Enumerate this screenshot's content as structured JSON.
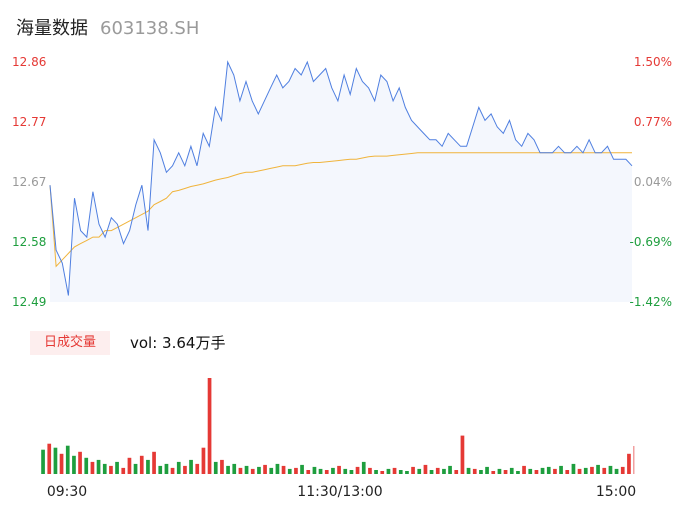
{
  "header": {
    "name": "海量数据",
    "code": "603138.SH"
  },
  "volume_label": {
    "tag": "日成交量",
    "prefix": "vol: ",
    "value": "3.64万手"
  },
  "colors": {
    "up": "#e53935",
    "down": "#1e9e3e",
    "neutral": "#999999",
    "price_line": "#4f7fe0",
    "avg_line": "#f0b43c",
    "fill": "#f4f7fd"
  },
  "chart_data": {
    "type": "line",
    "y_ticks": [
      "12.86",
      "12.77",
      "12.67",
      "12.58",
      "12.49"
    ],
    "pct_ticks": [
      "1.50%",
      "0.77%",
      "0.04%",
      "-0.69%",
      "-1.42%"
    ],
    "x_ticks": [
      "09:30",
      "11:30/13:00",
      "15:00"
    ],
    "ylim": [
      12.49,
      12.86
    ],
    "prev_close": 12.67,
    "series": [
      {
        "values": [
          12.67,
          12.57,
          12.55,
          12.5,
          12.65,
          12.6,
          12.59,
          12.66,
          12.61,
          12.59,
          12.62,
          12.61,
          12.58,
          12.6,
          12.64,
          12.67,
          12.6,
          12.74,
          12.72,
          12.69,
          12.7,
          12.72,
          12.7,
          12.73,
          12.7,
          12.75,
          12.73,
          12.79,
          12.77,
          12.86,
          12.84,
          12.8,
          12.83,
          12.8,
          12.78,
          12.8,
          12.82,
          12.84,
          12.82,
          12.83,
          12.85,
          12.84,
          12.86,
          12.83,
          12.84,
          12.85,
          12.82,
          12.8,
          12.84,
          12.81,
          12.85,
          12.83,
          12.82,
          12.8,
          12.84,
          12.83,
          12.8,
          12.82,
          12.79,
          12.77,
          12.76,
          12.75,
          12.74,
          12.74,
          12.73,
          12.75,
          12.74,
          12.73,
          12.73,
          12.76,
          12.79,
          12.77,
          12.78,
          12.76,
          12.75,
          12.77,
          12.74,
          12.73,
          12.75,
          12.74,
          12.72,
          12.72,
          12.72,
          12.73,
          12.72,
          12.72,
          12.73,
          12.72,
          12.74,
          12.72,
          12.72,
          12.73,
          12.71,
          12.71,
          12.71,
          12.7
        ]
      },
      {
        "values": [
          12.67,
          12.545,
          12.555,
          12.565,
          12.575,
          12.58,
          12.585,
          12.59,
          12.59,
          12.6,
          12.6,
          12.605,
          12.61,
          12.615,
          12.62,
          12.625,
          12.63,
          12.64,
          12.645,
          12.65,
          12.66,
          12.662,
          12.665,
          12.668,
          12.67,
          12.672,
          12.675,
          12.678,
          12.68,
          12.682,
          12.685,
          12.688,
          12.69,
          12.69,
          12.692,
          12.694,
          12.696,
          12.698,
          12.7,
          12.7,
          12.7,
          12.702,
          12.704,
          12.705,
          12.705,
          12.706,
          12.707,
          12.708,
          12.709,
          12.71,
          12.71,
          12.712,
          12.714,
          12.715,
          12.715,
          12.715,
          12.716,
          12.717,
          12.718,
          12.719,
          12.72,
          12.72,
          12.72,
          12.72,
          12.72,
          12.72,
          12.72,
          12.72,
          12.72,
          12.72,
          12.72,
          12.72,
          12.72,
          12.72,
          12.72,
          12.72,
          12.72,
          12.72,
          12.72,
          12.72,
          12.72,
          12.72,
          12.72,
          12.72,
          12.72,
          12.72,
          12.72,
          12.72,
          12.72,
          12.72,
          12.72,
          12.72,
          12.72,
          12.72,
          12.72,
          12.72
        ]
      }
    ],
    "volume": [
      {
        "v": 24,
        "up": false
      },
      {
        "v": 30,
        "up": true
      },
      {
        "v": 26,
        "up": false
      },
      {
        "v": 20,
        "up": true
      },
      {
        "v": 28,
        "up": false
      },
      {
        "v": 18,
        "up": false
      },
      {
        "v": 22,
        "up": true
      },
      {
        "v": 16,
        "up": false
      },
      {
        "v": 12,
        "up": true
      },
      {
        "v": 14,
        "up": false
      },
      {
        "v": 10,
        "up": false
      },
      {
        "v": 8,
        "up": true
      },
      {
        "v": 12,
        "up": false
      },
      {
        "v": 6,
        "up": true
      },
      {
        "v": 16,
        "up": true
      },
      {
        "v": 10,
        "up": false
      },
      {
        "v": 18,
        "up": true
      },
      {
        "v": 14,
        "up": false
      },
      {
        "v": 22,
        "up": true
      },
      {
        "v": 8,
        "up": false
      },
      {
        "v": 10,
        "up": false
      },
      {
        "v": 6,
        "up": true
      },
      {
        "v": 12,
        "up": false
      },
      {
        "v": 8,
        "up": true
      },
      {
        "v": 14,
        "up": false
      },
      {
        "v": 10,
        "up": true
      },
      {
        "v": 26,
        "up": true
      },
      {
        "v": 95,
        "up": true
      },
      {
        "v": 12,
        "up": false
      },
      {
        "v": 14,
        "up": true
      },
      {
        "v": 8,
        "up": false
      },
      {
        "v": 10,
        "up": false
      },
      {
        "v": 6,
        "up": true
      },
      {
        "v": 8,
        "up": false
      },
      {
        "v": 5,
        "up": true
      },
      {
        "v": 7,
        "up": false
      },
      {
        "v": 9,
        "up": true
      },
      {
        "v": 6,
        "up": false
      },
      {
        "v": 10,
        "up": false
      },
      {
        "v": 8,
        "up": true
      },
      {
        "v": 5,
        "up": false
      },
      {
        "v": 6,
        "up": true
      },
      {
        "v": 9,
        "up": false
      },
      {
        "v": 4,
        "up": true
      },
      {
        "v": 7,
        "up": false
      },
      {
        "v": 5,
        "up": false
      },
      {
        "v": 4,
        "up": true
      },
      {
        "v": 6,
        "up": false
      },
      {
        "v": 8,
        "up": true
      },
      {
        "v": 5,
        "up": false
      },
      {
        "v": 4,
        "up": false
      },
      {
        "v": 7,
        "up": true
      },
      {
        "v": 12,
        "up": false
      },
      {
        "v": 6,
        "up": true
      },
      {
        "v": 4,
        "up": false
      },
      {
        "v": 3,
        "up": true
      },
      {
        "v": 5,
        "up": false
      },
      {
        "v": 6,
        "up": true
      },
      {
        "v": 4,
        "up": false
      },
      {
        "v": 3,
        "up": false
      },
      {
        "v": 7,
        "up": true
      },
      {
        "v": 5,
        "up": false
      },
      {
        "v": 9,
        "up": true
      },
      {
        "v": 4,
        "up": false
      },
      {
        "v": 6,
        "up": true
      },
      {
        "v": 5,
        "up": false
      },
      {
        "v": 8,
        "up": false
      },
      {
        "v": 4,
        "up": true
      },
      {
        "v": 38,
        "up": true
      },
      {
        "v": 6,
        "up": false
      },
      {
        "v": 5,
        "up": true
      },
      {
        "v": 4,
        "up": false
      },
      {
        "v": 7,
        "up": false
      },
      {
        "v": 3,
        "up": true
      },
      {
        "v": 5,
        "up": false
      },
      {
        "v": 4,
        "up": true
      },
      {
        "v": 6,
        "up": false
      },
      {
        "v": 3,
        "up": false
      },
      {
        "v": 8,
        "up": true
      },
      {
        "v": 5,
        "up": false
      },
      {
        "v": 4,
        "up": true
      },
      {
        "v": 6,
        "up": false
      },
      {
        "v": 7,
        "up": false
      },
      {
        "v": 5,
        "up": true
      },
      {
        "v": 8,
        "up": false
      },
      {
        "v": 4,
        "up": true
      },
      {
        "v": 10,
        "up": false
      },
      {
        "v": 5,
        "up": true
      },
      {
        "v": 6,
        "up": false
      },
      {
        "v": 7,
        "up": true
      },
      {
        "v": 9,
        "up": false
      },
      {
        "v": 6,
        "up": true
      },
      {
        "v": 8,
        "up": false
      },
      {
        "v": 5,
        "up": false
      },
      {
        "v": 7,
        "up": true
      },
      {
        "v": 20,
        "up": true
      }
    ]
  }
}
